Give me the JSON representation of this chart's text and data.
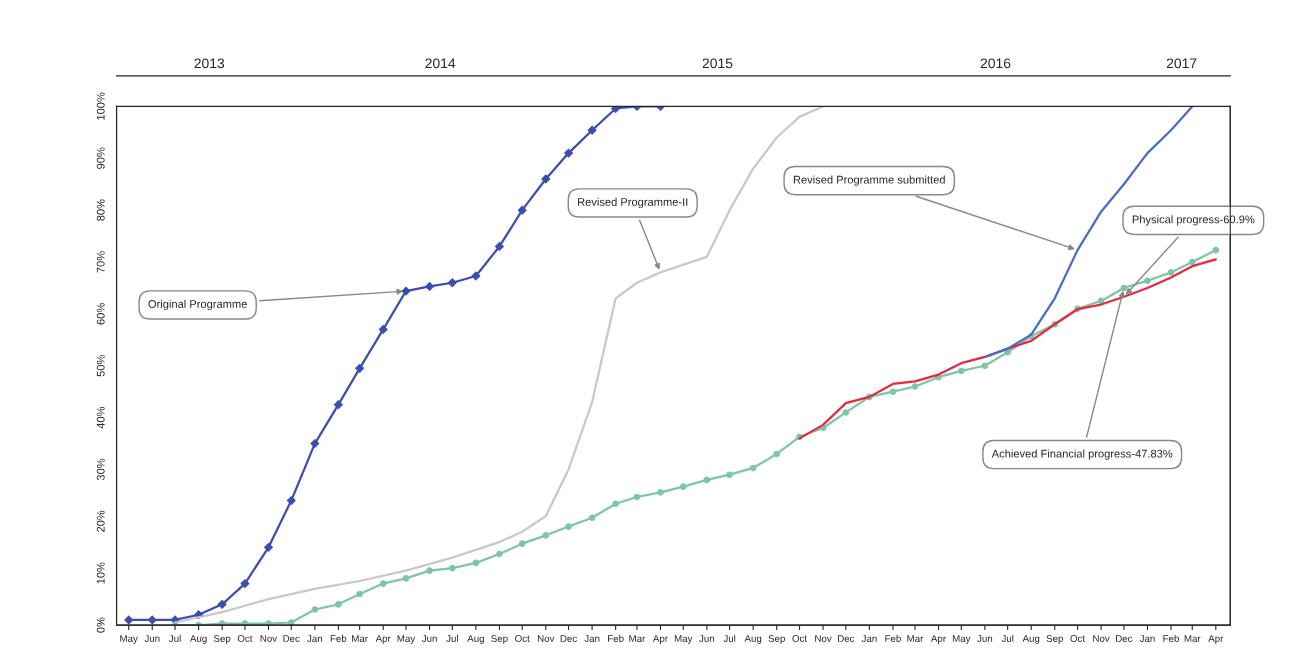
{
  "chart_data": {
    "type": "line",
    "xlim": [
      "2013-04-15",
      "2017-04-20"
    ],
    "xticks": [
      {
        "value": "2013-05",
        "label": "May"
      },
      {
        "value": "2013-06",
        "label": "Jun"
      },
      {
        "value": "2013-07",
        "label": "Jul"
      },
      {
        "value": "2013-08",
        "label": "Aug"
      },
      {
        "value": "2013-09",
        "label": "Sep"
      },
      {
        "value": "2013-10",
        "label": "Oct"
      },
      {
        "value": "2013-11",
        "label": "Nov"
      },
      {
        "value": "2013-12",
        "label": "Dec"
      },
      {
        "value": "2014-01",
        "label": "Jan"
      },
      {
        "value": "2014-02",
        "label": "Feb"
      },
      {
        "value": "2014-03",
        "label": "Mar"
      },
      {
        "value": "2014-04",
        "label": "Apr"
      },
      {
        "value": "2014-05",
        "label": "May"
      },
      {
        "value": "2014-06",
        "label": "Jun"
      },
      {
        "value": "2014-07",
        "label": "Jul"
      },
      {
        "value": "2014-08",
        "label": "Aug"
      },
      {
        "value": "2014-09",
        "label": "Sep"
      },
      {
        "value": "2014-10",
        "label": "Oct"
      },
      {
        "value": "2014-11",
        "label": "Nov"
      },
      {
        "value": "2014-12",
        "label": "Dec"
      },
      {
        "value": "2015-01",
        "label": "Jan"
      },
      {
        "value": "2015-02",
        "label": "Feb"
      },
      {
        "value": "2015-03",
        "label": "Mar"
      },
      {
        "value": "2015-04",
        "label": "Apr"
      },
      {
        "value": "2015-05",
        "label": "May"
      },
      {
        "value": "2015-06",
        "label": "Jun"
      },
      {
        "value": "2015-07",
        "label": "Jul"
      },
      {
        "value": "2015-08",
        "label": "Aug"
      },
      {
        "value": "2015-09",
        "label": "Sep"
      },
      {
        "value": "2015-10",
        "label": "Oct"
      },
      {
        "value": "2015-11",
        "label": "Nov"
      },
      {
        "value": "2015-12",
        "label": "Dec"
      },
      {
        "value": "2016-01",
        "label": "Jan"
      },
      {
        "value": "2016-02",
        "label": "Feb"
      },
      {
        "value": "2016-03",
        "label": "Mar"
      },
      {
        "value": "2016-04",
        "label": "Apr"
      },
      {
        "value": "2016-05",
        "label": "May"
      },
      {
        "value": "2016-06",
        "label": "Jun"
      },
      {
        "value": "2016-07",
        "label": "Jul"
      },
      {
        "value": "2016-08",
        "label": "Aug"
      },
      {
        "value": "2016-09",
        "label": "Sep"
      },
      {
        "value": "2016-10",
        "label": "Oct"
      },
      {
        "value": "2016-11",
        "label": "Nov"
      },
      {
        "value": "2016-12",
        "label": "Dec"
      },
      {
        "value": "2017-01",
        "label": "Jan"
      },
      {
        "value": "2017-02",
        "label": "Feb"
      },
      {
        "value": "2017-03",
        "label": "Mar"
      },
      {
        "value": "2017-04",
        "label": "Apr"
      }
    ],
    "x2lim": [
      "2013-04-15",
      "2017-04-20"
    ],
    "x2ticks": [
      {
        "value": "2013-08-15",
        "label": "2013"
      },
      {
        "value": "2014-06-15",
        "label": "2014"
      },
      {
        "value": "2015-06-15",
        "label": "2015"
      },
      {
        "value": "2016-06-15",
        "label": "2016"
      },
      {
        "value": "2017-02-15",
        "label": "2017"
      }
    ],
    "ylim": [
      0,
      100
    ],
    "yticks": [
      {
        "value": 0,
        "label": "0%"
      },
      {
        "value": 10,
        "label": "10%"
      },
      {
        "value": 20,
        "label": "20%"
      },
      {
        "value": 30,
        "label": "30%"
      },
      {
        "value": 40,
        "label": "40%"
      },
      {
        "value": 50,
        "label": "50%"
      },
      {
        "value": 60,
        "label": "60%"
      },
      {
        "value": 70,
        "label": "70%"
      },
      {
        "value": 80,
        "label": "80%"
      },
      {
        "value": 90,
        "label": "90%"
      },
      {
        "value": 100,
        "label": "100%"
      }
    ],
    "grid": false,
    "legend": false,
    "series": [
      {
        "color": "#3b4db0",
        "marker": "diamond",
        "x": [
          "2013-05",
          "2013-06",
          "2013-07",
          "2013-08",
          "2013-09",
          "2013-10",
          "2013-11",
          "2013-12",
          "2014-01",
          "2014-02",
          "2014-03",
          "2014-04",
          "2014-05",
          "2014-06",
          "2014-07",
          "2014-08",
          "2014-09",
          "2014-10",
          "2014-11",
          "2014-12",
          "2015-01",
          "2015-02",
          "2015-03",
          "2015-04"
        ],
        "values": [
          1,
          1,
          1,
          2,
          4,
          8,
          15,
          24,
          35,
          42.5,
          49.5,
          57,
          64.4,
          65.3,
          66,
          67.3,
          73,
          80,
          86,
          91,
          95.4,
          99.6,
          100,
          100
        ]
      },
      {
        "color": "#c8c8c8",
        "marker": "none",
        "x": [
          "2013-07",
          "2013-09",
          "2013-11",
          "2014-01",
          "2014-03",
          "2014-05",
          "2014-07",
          "2014-09",
          "2014-10",
          "2014-11",
          "2014-12",
          "2015-01",
          "2015-02",
          "2015-03",
          "2015-04",
          "2015-06",
          "2015-07",
          "2015-08",
          "2015-09",
          "2015-10",
          "2015-11"
        ],
        "values": [
          0.5,
          2.5,
          5,
          7,
          8.5,
          10.5,
          13,
          16,
          18,
          21,
          30,
          43,
          63,
          66,
          68,
          71,
          80,
          88,
          94,
          98,
          100
        ]
      },
      {
        "color": "#7cc6a6",
        "marker": "circle",
        "x": [
          "2013-07",
          "2013-08",
          "2013-09",
          "2013-10",
          "2013-11",
          "2013-12",
          "2014-01",
          "2014-02",
          "2014-03",
          "2014-04",
          "2014-05",
          "2014-06",
          "2014-07",
          "2014-08",
          "2014-09",
          "2014-10",
          "2014-11",
          "2014-12",
          "2015-01",
          "2015-02",
          "2015-03",
          "2015-04",
          "2015-05",
          "2015-06",
          "2015-07",
          "2015-08",
          "2015-09",
          "2015-10",
          "2015-11",
          "2015-12",
          "2016-01",
          "2016-02",
          "2016-03",
          "2016-04",
          "2016-05",
          "2016-06",
          "2016-07",
          "2016-08",
          "2016-09",
          "2016-10",
          "2016-11",
          "2016-12",
          "2017-01",
          "2017-02",
          "2017-03",
          "2017-04"
        ],
        "values": [
          0,
          0,
          0.3,
          0.3,
          0.3,
          0.5,
          3,
          4,
          6,
          8,
          9,
          10.5,
          11,
          12,
          13.7,
          15.7,
          17.3,
          19,
          20.7,
          23.4,
          24.7,
          25.6,
          26.7,
          28,
          29,
          30.3,
          33,
          36.3,
          38,
          41,
          44,
          45,
          46,
          47.8,
          49,
          50,
          52.6,
          55.7,
          58,
          61,
          62.5,
          65,
          66.4,
          68,
          70,
          72.3
        ]
      },
      {
        "color": "#e8283c",
        "marker": "none",
        "x": [
          "2015-10",
          "2015-11",
          "2015-12",
          "2016-01",
          "2016-02",
          "2016-03",
          "2016-04",
          "2016-05",
          "2016-06",
          "2016-07",
          "2016-08",
          "2016-09",
          "2016-10",
          "2016-11",
          "2016-12",
          "2017-01",
          "2017-02",
          "2017-03",
          "2017-04"
        ],
        "values": [
          36,
          38.6,
          42.8,
          44,
          46.5,
          47,
          48.3,
          50.5,
          51.7,
          53.3,
          54.8,
          58,
          60.9,
          61.8,
          63.3,
          65,
          67,
          69.2,
          70.5
        ]
      },
      {
        "color": "#4a6cc0",
        "marker": "none",
        "x": [
          "2016-06",
          "2016-07",
          "2016-08",
          "2016-09",
          "2016-10",
          "2016-11",
          "2016-12",
          "2017-01",
          "2017-02",
          "2017-03"
        ],
        "values": [
          51.7,
          53.3,
          56,
          63,
          72.3,
          79.7,
          85,
          91,
          95.4,
          100
        ]
      }
    ],
    "annotations": [
      {
        "text": "Original Programme",
        "x": "2014-05",
        "y": 64.4
      },
      {
        "text": "Revised Programme-II",
        "x": "2015-04",
        "y": 68
      },
      {
        "text": "Revised Programme submitted",
        "x": "2016-10",
        "y": 72.3
      },
      {
        "text": "Physical progress-60.9%",
        "x": "2016-12",
        "y": 63.3
      },
      {
        "text": "Achieved Financial progress-47.83%",
        "x": "2016-12",
        "y": 65
      }
    ]
  }
}
